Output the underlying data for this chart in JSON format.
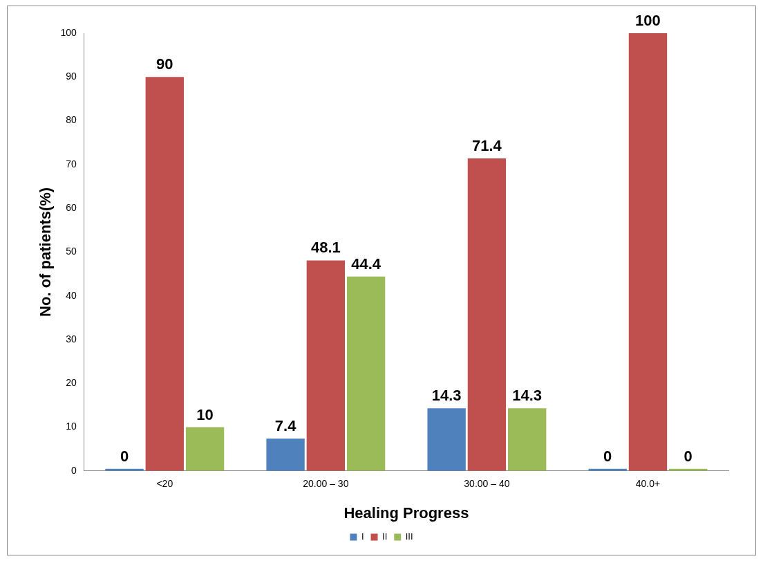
{
  "chart_data": {
    "type": "bar",
    "xlabel": "Healing Progress",
    "ylabel": "No. of patients(%)",
    "categories": [
      "<20",
      "20.00 – 30",
      "30.00 – 40",
      "40.0+"
    ],
    "series": [
      {
        "name": "I",
        "color": "#4f81bd",
        "values": [
          0,
          7.4,
          14.3,
          0
        ]
      },
      {
        "name": "II",
        "color": "#c0504d",
        "values": [
          90,
          48.1,
          71.4,
          100
        ]
      },
      {
        "name": "III",
        "color": "#9bbb59",
        "values": [
          10,
          44.4,
          14.3,
          0
        ]
      }
    ],
    "ylim": [
      0,
      100
    ],
    "yticks": [
      0,
      10,
      20,
      30,
      40,
      50,
      60,
      70,
      80,
      90,
      100
    ],
    "grid": false,
    "legend": "bottom",
    "data_labels": true
  }
}
